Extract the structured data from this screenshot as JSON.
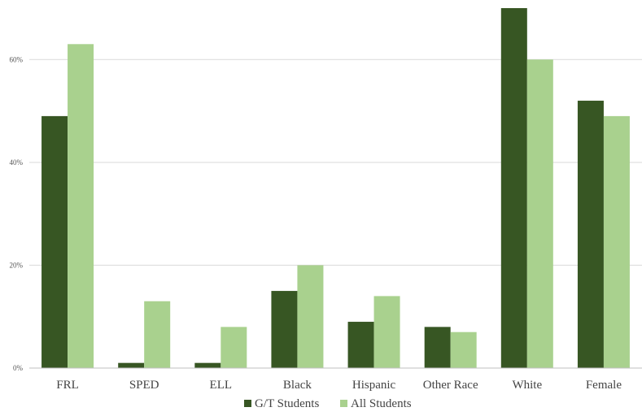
{
  "chart_data": {
    "type": "bar",
    "title": "",
    "xlabel": "",
    "ylabel": "",
    "categories": [
      "FRL",
      "SPED",
      "ELL",
      "Black",
      "Hispanic",
      "Other Race",
      "White",
      "Female"
    ],
    "series": [
      {
        "name": "G/T Students",
        "values": [
          49,
          1,
          1,
          15,
          9,
          8,
          70,
          52
        ],
        "color": "#375623"
      },
      {
        "name": "All Students",
        "values": [
          63,
          13,
          8,
          20,
          14,
          7,
          60,
          49
        ],
        "color": "#a9d18e"
      }
    ],
    "ylim": [
      0,
      70
    ],
    "yticks": [
      0,
      20,
      40,
      60
    ],
    "ytick_labels": [
      "0%",
      "20%",
      "40%",
      "60%"
    ],
    "grid": true,
    "legend_position": "bottom-center",
    "colors": {
      "gridline": "#d9d9d9",
      "axis": "#bfbfbf"
    }
  }
}
